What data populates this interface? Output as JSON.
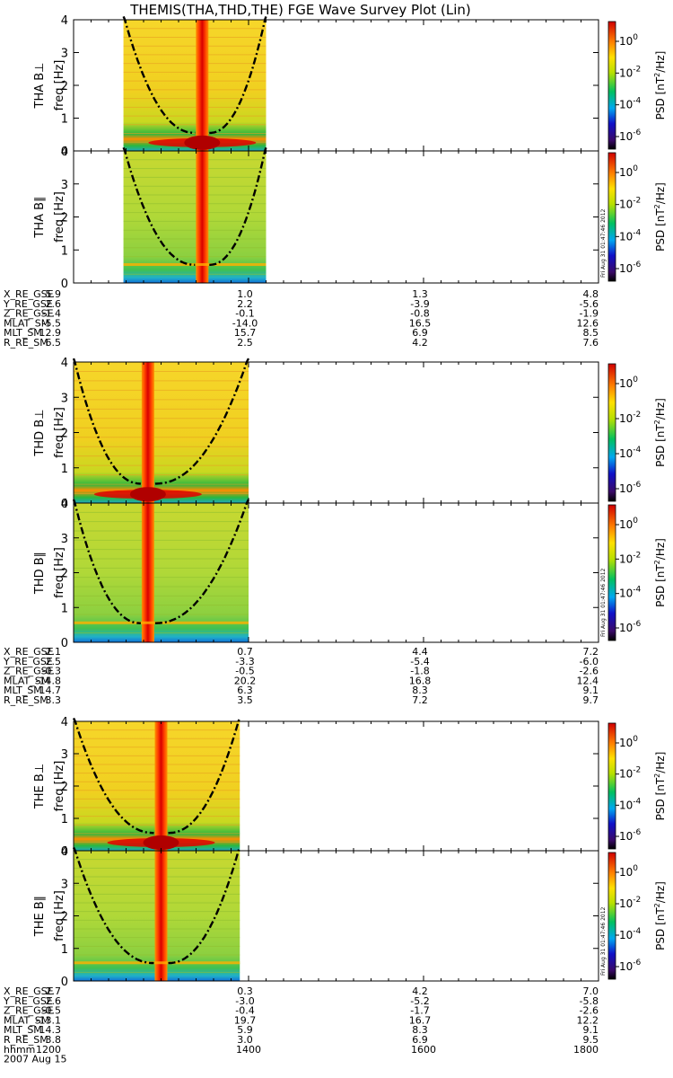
{
  "title": "THEMIS(THA,THD,THE) FGE Wave Survey Plot (Lin)",
  "chart_data": {
    "type": "heatmap",
    "title": "THEMIS(THA,THD,THE) FGE Wave Survey Plot (Lin)",
    "xlabel": "hhmm",
    "date_label": "2007 Aug 15",
    "x_tick_labels": [
      "1200",
      "1400",
      "1600",
      "1800"
    ],
    "xlim": [
      1200,
      1800
    ],
    "ylabel": "freq [Hz]",
    "ylim": [
      0,
      4
    ],
    "y_ticks": [
      "0",
      "1",
      "2",
      "3",
      "4"
    ],
    "colorbar": {
      "label_main": "PSD [nT",
      "label_sup": "2",
      "label_end": "/Hz]",
      "tick_base": "10",
      "tick_exponents": [
        "0",
        "-2",
        "-4",
        "-6"
      ],
      "stamp": "Fri Aug 31 01:47:46 2012"
    },
    "probes": [
      {
        "probe": "THA",
        "panels": [
          {
            "label": "THA B⊥",
            "data_start": 1257,
            "data_end": 1420,
            "center": 1347
          },
          {
            "label": "THA B∥",
            "data_start": 1257,
            "data_end": 1420,
            "center": 1347
          }
        ],
        "ephemeris": [
          {
            "name": "X_RE_GSE",
            "values": [
              "5.9",
              "1.0",
              "1.3",
              "4.8"
            ]
          },
          {
            "name": "Y_RE_GSE",
            "values": [
              "2.6",
              "2.2",
              "-3.9",
              "-5.6"
            ]
          },
          {
            "name": "Z_RE_GSE",
            "values": [
              "-1.4",
              "-0.1",
              "-0.8",
              "-1.9"
            ]
          },
          {
            "name": "MLAT_SM",
            "values": [
              "-5.5",
              "-14.0",
              "16.5",
              "12.6"
            ]
          },
          {
            "name": "MLT_SM",
            "values": [
              "12.9",
              "15.7",
              "6.9",
              "8.5"
            ]
          },
          {
            "name": "R_RE_SM",
            "values": [
              "6.5",
              "2.5",
              "4.2",
              "7.6"
            ]
          }
        ]
      },
      {
        "probe": "THD",
        "panels": [
          {
            "label": "THD B⊥",
            "data_start": 1200,
            "data_end": 1400,
            "center": 1285
          },
          {
            "label": "THD B∥",
            "data_start": 1200,
            "data_end": 1400,
            "center": 1285
          }
        ],
        "ephemeris": [
          {
            "name": "X_RE_GSE",
            "values": [
              "2.1",
              "0.7",
              "4.4",
              "7.2"
            ]
          },
          {
            "name": "Y_RE_GSE",
            "values": [
              "2.5",
              "-3.3",
              "-5.4",
              "-6.0"
            ]
          },
          {
            "name": "Z_RE_GSE",
            "values": [
              "-0.3",
              "-0.5",
              "-1.8",
              "-2.6"
            ]
          },
          {
            "name": "MLAT_SM",
            "values": [
              "-14.8",
              "20.2",
              "16.8",
              "12.4"
            ]
          },
          {
            "name": "MLT_SM",
            "values": [
              "14.7",
              "6.3",
              "8.3",
              "9.1"
            ]
          },
          {
            "name": "R_RE_SM",
            "values": [
              "3.3",
              "3.5",
              "7.2",
              "9.7"
            ]
          }
        ]
      },
      {
        "probe": "THE",
        "panels": [
          {
            "label": "THE B⊥",
            "data_start": 1200,
            "data_end": 1390,
            "center": 1300
          },
          {
            "label": "THE B∥",
            "data_start": 1200,
            "data_end": 1390,
            "center": 1300
          }
        ],
        "ephemeris": [
          {
            "name": "X_RE_GSE",
            "values": [
              "2.7",
              "0.3",
              "4.2",
              "7.0"
            ]
          },
          {
            "name": "Y_RE_GSE",
            "values": [
              "2.6",
              "-3.0",
              "-5.2",
              "-5.8"
            ]
          },
          {
            "name": "Z_RE_GSE",
            "values": [
              "-0.5",
              "-0.4",
              "-1.7",
              "-2.6"
            ]
          },
          {
            "name": "MLAT_SM",
            "values": [
              "-13.1",
              "19.7",
              "16.7",
              "12.2"
            ]
          },
          {
            "name": "MLT_SM",
            "values": [
              "14.3",
              "5.9",
              "8.3",
              "9.1"
            ]
          },
          {
            "name": "R_RE_SM",
            "values": [
              "3.8",
              "3.0",
              "6.9",
              "9.5"
            ]
          }
        ]
      }
    ]
  }
}
